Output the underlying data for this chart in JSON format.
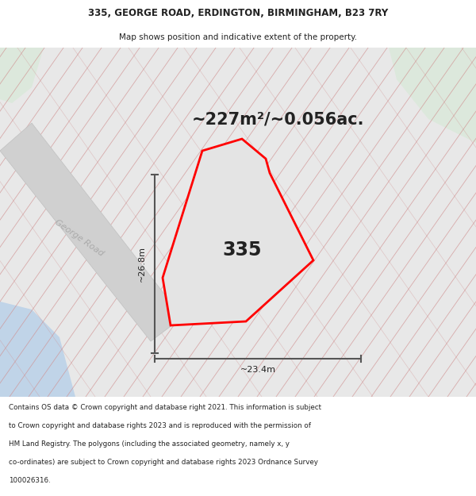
{
  "title_line1": "335, GEORGE ROAD, ERDINGTON, BIRMINGHAM, B23 7RY",
  "title_line2": "Map shows position and indicative extent of the property.",
  "area_text": "~227m²/~0.056ac.",
  "property_number": "335",
  "width_label": "~23.4m",
  "height_label": "~26.8m",
  "road_label": "George Road",
  "footer_lines": [
    "Contains OS data © Crown copyright and database right 2021. This information is subject",
    "to Crown copyright and database rights 2023 and is reproduced with the permission of",
    "HM Land Registry. The polygons (including the associated geometry, namely x, y",
    "co-ordinates) are subject to Crown copyright and database rights 2023 Ordnance Survey",
    "100026316."
  ],
  "bg_color": "#f5f5f5",
  "map_bg": "#e8e8e8",
  "parcel_bg": "#e0e0e0",
  "road_color": "#d0d0d0",
  "plot_outline_color": "#ff0000",
  "hatch_color": "#d09090",
  "dimension_color": "#555555",
  "text_color": "#222222",
  "water_color": "#c0d4e8",
  "green_color": "#dce8dc",
  "road_text_color": "#aaaaaa",
  "header_bg": "#ffffff",
  "footer_bg": "#ffffff"
}
